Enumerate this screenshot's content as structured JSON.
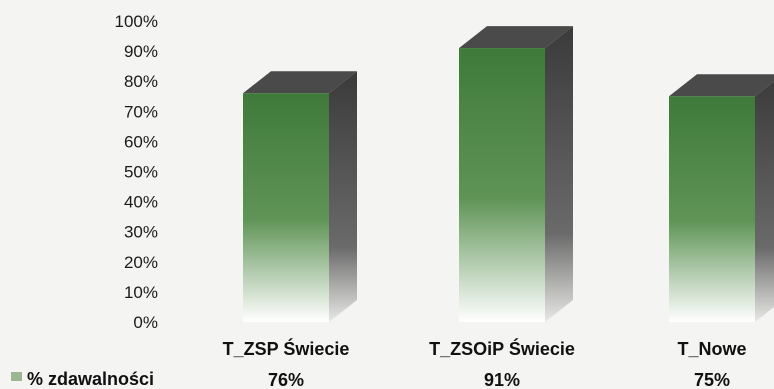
{
  "chart_data": {
    "type": "bar",
    "title": "",
    "xlabel": "",
    "ylabel": "",
    "ylim": [
      0,
      100
    ],
    "yticks": [
      "0%",
      "10%",
      "20%",
      "30%",
      "40%",
      "50%",
      "60%",
      "70%",
      "80%",
      "90%",
      "100%"
    ],
    "categories": [
      "T_ZSP Świecie",
      "T_ZSOiP Świecie",
      "T_Nowe"
    ],
    "series": [
      {
        "name": "% zdawalności",
        "values": [
          76,
          91,
          75
        ],
        "labels": [
          "76%",
          "91%",
          "75%"
        ]
      }
    ],
    "legend_position": "bottom-left",
    "grid": false,
    "colors": {
      "bar_top": "#3f7a3a",
      "bar_mid": "#5f9456",
      "bar_bottom": "#ffffff",
      "bar_side": "#3a3a3a",
      "bar_cap": "#4a4a4a",
      "legend_swatch": "#9bb792"
    }
  }
}
